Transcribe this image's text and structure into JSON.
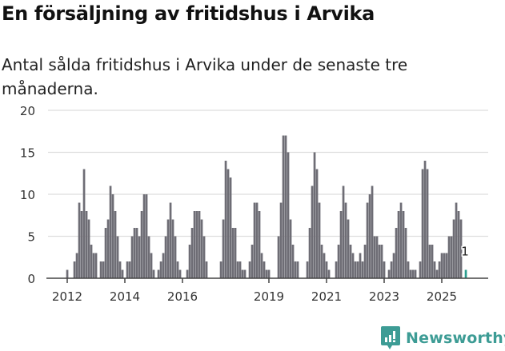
{
  "header": {
    "title": "En försäljning av fritidshus i Arvika",
    "subtitle": "Antal sålda fritidshus i Arvika under de senaste tre månaderna."
  },
  "brand": {
    "name": "Newsworthy",
    "icon": "bar-chart-speech-bubble-icon",
    "color": "#3d9c95"
  },
  "colors": {
    "bar": "#6e6d75",
    "highlight": "#2a9d8f",
    "grid": "#dddddd",
    "axis": "#444444"
  },
  "chart_data": {
    "type": "bar",
    "title": "En försäljning av fritidshus i Arvika",
    "subtitle": "Antal sålda fritidshus i Arvika under de senaste tre månaderna.",
    "xlabel": "",
    "ylabel": "",
    "ylim": [
      0,
      20
    ],
    "yticks": [
      0,
      5,
      10,
      15,
      20
    ],
    "xticks": [
      "2012",
      "2014",
      "2016",
      "2019",
      "2021",
      "2023",
      "2025"
    ],
    "grid": true,
    "legend": null,
    "start": "2012-01",
    "frequency": "monthly",
    "highlight_last": true,
    "annotation": {
      "label": "1",
      "month": "2025-11"
    },
    "values": [
      1,
      0,
      0,
      2,
      3,
      9,
      8,
      13,
      8,
      7,
      4,
      3,
      3,
      0,
      2,
      2,
      6,
      7,
      11,
      10,
      8,
      5,
      2,
      1,
      0,
      2,
      2,
      5,
      6,
      6,
      5,
      8,
      10,
      10,
      5,
      3,
      1,
      0,
      1,
      2,
      3,
      5,
      7,
      9,
      7,
      5,
      2,
      1,
      0,
      0,
      1,
      4,
      6,
      8,
      8,
      8,
      7,
      5,
      2,
      0,
      0,
      0,
      0,
      0,
      2,
      7,
      14,
      13,
      12,
      6,
      6,
      2,
      2,
      1,
      1,
      0,
      2,
      4,
      9,
      9,
      8,
      3,
      2,
      1,
      1,
      0,
      0,
      0,
      5,
      9,
      17,
      17,
      15,
      7,
      4,
      2,
      2,
      0,
      0,
      0,
      2,
      6,
      11,
      15,
      13,
      9,
      4,
      3,
      2,
      1,
      0,
      0,
      2,
      4,
      8,
      11,
      9,
      7,
      4,
      3,
      2,
      2,
      3,
      2,
      4,
      9,
      10,
      11,
      5,
      5,
      4,
      4,
      2,
      0,
      1,
      2,
      3,
      6,
      8,
      9,
      8,
      6,
      2,
      1,
      1,
      1,
      0,
      2,
      13,
      14,
      13,
      4,
      4,
      2,
      1,
      2,
      3,
      3,
      3,
      5,
      5,
      7,
      9,
      8,
      7,
      0,
      1
    ]
  }
}
